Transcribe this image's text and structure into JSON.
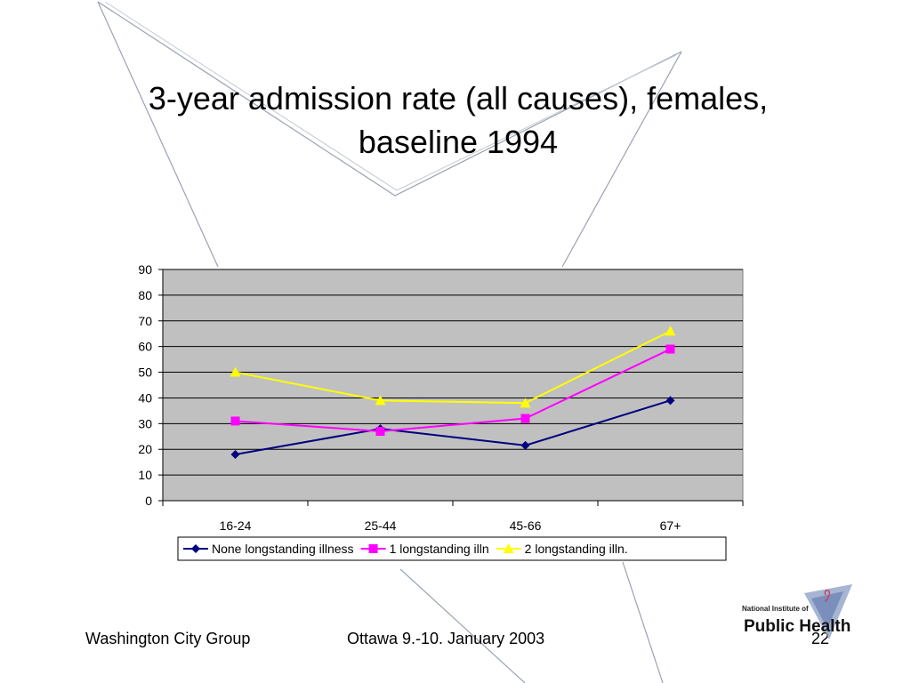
{
  "slide": {
    "title_line1": "3-year admission rate (all causes), females,",
    "title_line2": "baseline 1994",
    "footer_left": "Washington City Group",
    "footer_center": "Ottawa 9.-10. January 2003",
    "page_number": "22",
    "logo_text": "National Institute of Public Health"
  },
  "chart_data": {
    "type": "line",
    "title": "",
    "xlabel": "",
    "ylabel": "",
    "categories": [
      "16-24",
      "25-44",
      "45-66",
      "67+"
    ],
    "ylim": [
      0,
      90
    ],
    "yticks": [
      0,
      10,
      20,
      30,
      40,
      50,
      60,
      70,
      80,
      90
    ],
    "grid": true,
    "legend_position": "bottom",
    "plot_background": "#c0c0c0",
    "series": [
      {
        "name": "None longstanding illness",
        "values": [
          18,
          28,
          21.5,
          39
        ],
        "color": "#000080",
        "marker": "diamond"
      },
      {
        "name": "1 longstanding illn",
        "values": [
          31,
          27,
          32,
          59
        ],
        "color": "#ff00ff",
        "marker": "square"
      },
      {
        "name": "2 longstanding illn.",
        "values": [
          50,
          39,
          38,
          66
        ],
        "color": "#ffff00",
        "marker": "triangle"
      }
    ]
  }
}
